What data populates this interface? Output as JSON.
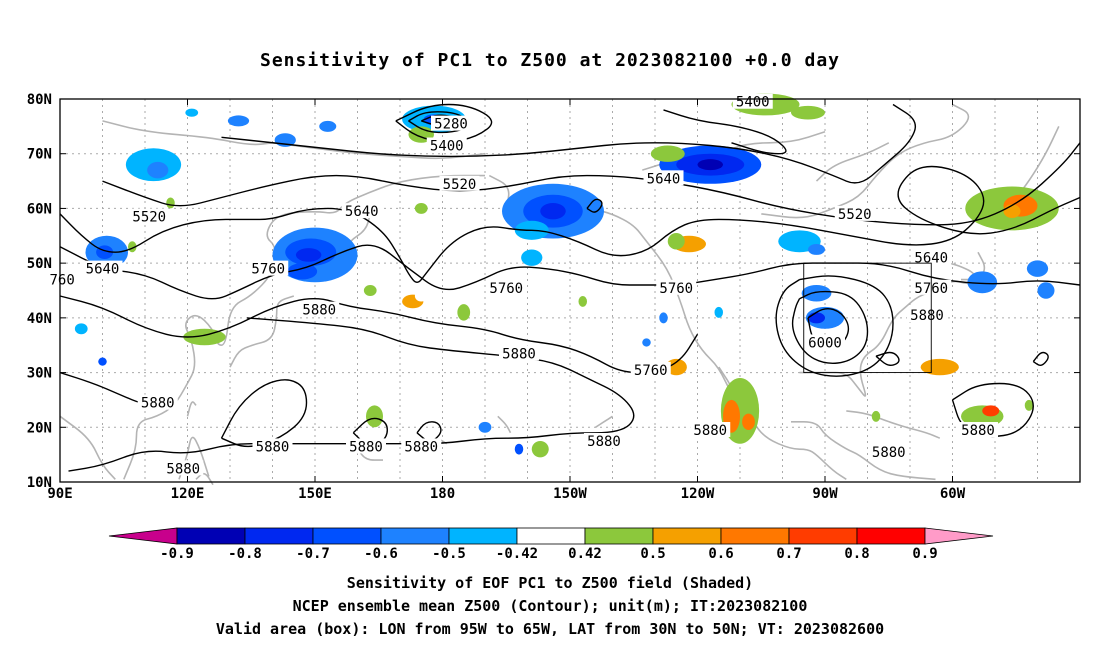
{
  "title": "Sensitivity of PC1 to Z500 at 2023082100 +0.0 day",
  "lat_labels": [
    "80N",
    "70N",
    "60N",
    "50N",
    "40N",
    "30N",
    "20N",
    "10N"
  ],
  "lon_labels": [
    "90E",
    "120E",
    "150E",
    "180",
    "150W",
    "120W",
    "90W",
    "60W"
  ],
  "contour_labels": [
    {
      "text": "5280",
      "lon": 182,
      "lat": 75.5
    },
    {
      "text": "5400",
      "lon": 181,
      "lat": 71.5
    },
    {
      "text": "5400",
      "lon": 253,
      "lat": 79.5
    },
    {
      "text": "5520",
      "lon": 111,
      "lat": 58.5
    },
    {
      "text": "5520",
      "lon": 184,
      "lat": 64.5
    },
    {
      "text": "5520",
      "lon": 277,
      "lat": 59
    },
    {
      "text": "5640",
      "lon": 100,
      "lat": 49
    },
    {
      "text": "5640",
      "lon": 161,
      "lat": 59.5
    },
    {
      "text": "5640",
      "lon": 232,
      "lat": 65.5
    },
    {
      "text": "5640",
      "lon": 295,
      "lat": 51
    },
    {
      "text": "760",
      "lon": 90.5,
      "lat": 47
    },
    {
      "text": "5760",
      "lon": 139,
      "lat": 49
    },
    {
      "text": "5760",
      "lon": 195,
      "lat": 45.5
    },
    {
      "text": "5760",
      "lon": 235,
      "lat": 45.5
    },
    {
      "text": "5760",
      "lon": 295,
      "lat": 45.5
    },
    {
      "text": "5760",
      "lon": 229,
      "lat": 30.5
    },
    {
      "text": "5880",
      "lon": 151,
      "lat": 41.5
    },
    {
      "text": "5880",
      "lon": 198,
      "lat": 33.5
    },
    {
      "text": "5880",
      "lon": 294,
      "lat": 40.5
    },
    {
      "text": "5880",
      "lon": 113,
      "lat": 24.5
    },
    {
      "text": "5880",
      "lon": 140,
      "lat": 16.5
    },
    {
      "text": "5880",
      "lon": 162,
      "lat": 16.5
    },
    {
      "text": "5880",
      "lon": 175,
      "lat": 16.5
    },
    {
      "text": "5880",
      "lon": 218,
      "lat": 17.5
    },
    {
      "text": "5880",
      "lon": 243,
      "lat": 19.5
    },
    {
      "text": "5880",
      "lon": 285,
      "lat": 15.5
    },
    {
      "text": "5880",
      "lon": 306,
      "lat": 19.5
    },
    {
      "text": "5880",
      "lon": 119,
      "lat": 12.5
    },
    {
      "text": "6000",
      "lon": 270,
      "lat": 35.5
    }
  ],
  "colorbar": {
    "levels": [
      "-0.9",
      "-0.8",
      "-0.7",
      "-0.6",
      "-0.5",
      "-0.42",
      "0.42",
      "0.5",
      "0.6",
      "0.7",
      "0.8",
      "0.9"
    ],
    "colors": [
      "#c8008c",
      "#0000b4",
      "#0028f0",
      "#0050ff",
      "#1e82ff",
      "#00b4ff",
      "#ffffff",
      "#8cc83c",
      "#f5a000",
      "#ff7800",
      "#ff3c00",
      "#ff0000",
      "#ff9bc8"
    ],
    "units": ""
  },
  "valid_box": {
    "lon_min": 265,
    "lon_max": 295,
    "lat_min": 30,
    "lat_max": 50
  },
  "captions": [
    "Sensitivity of EOF PC1 to Z500 field (Shaded)",
    "NCEP ensemble mean Z500 (Contour); unit(m); IT:2023082100",
    "Valid area (box): LON from 95W to 65W, LAT from 30N to 50N; VT: 2023082600"
  ]
}
